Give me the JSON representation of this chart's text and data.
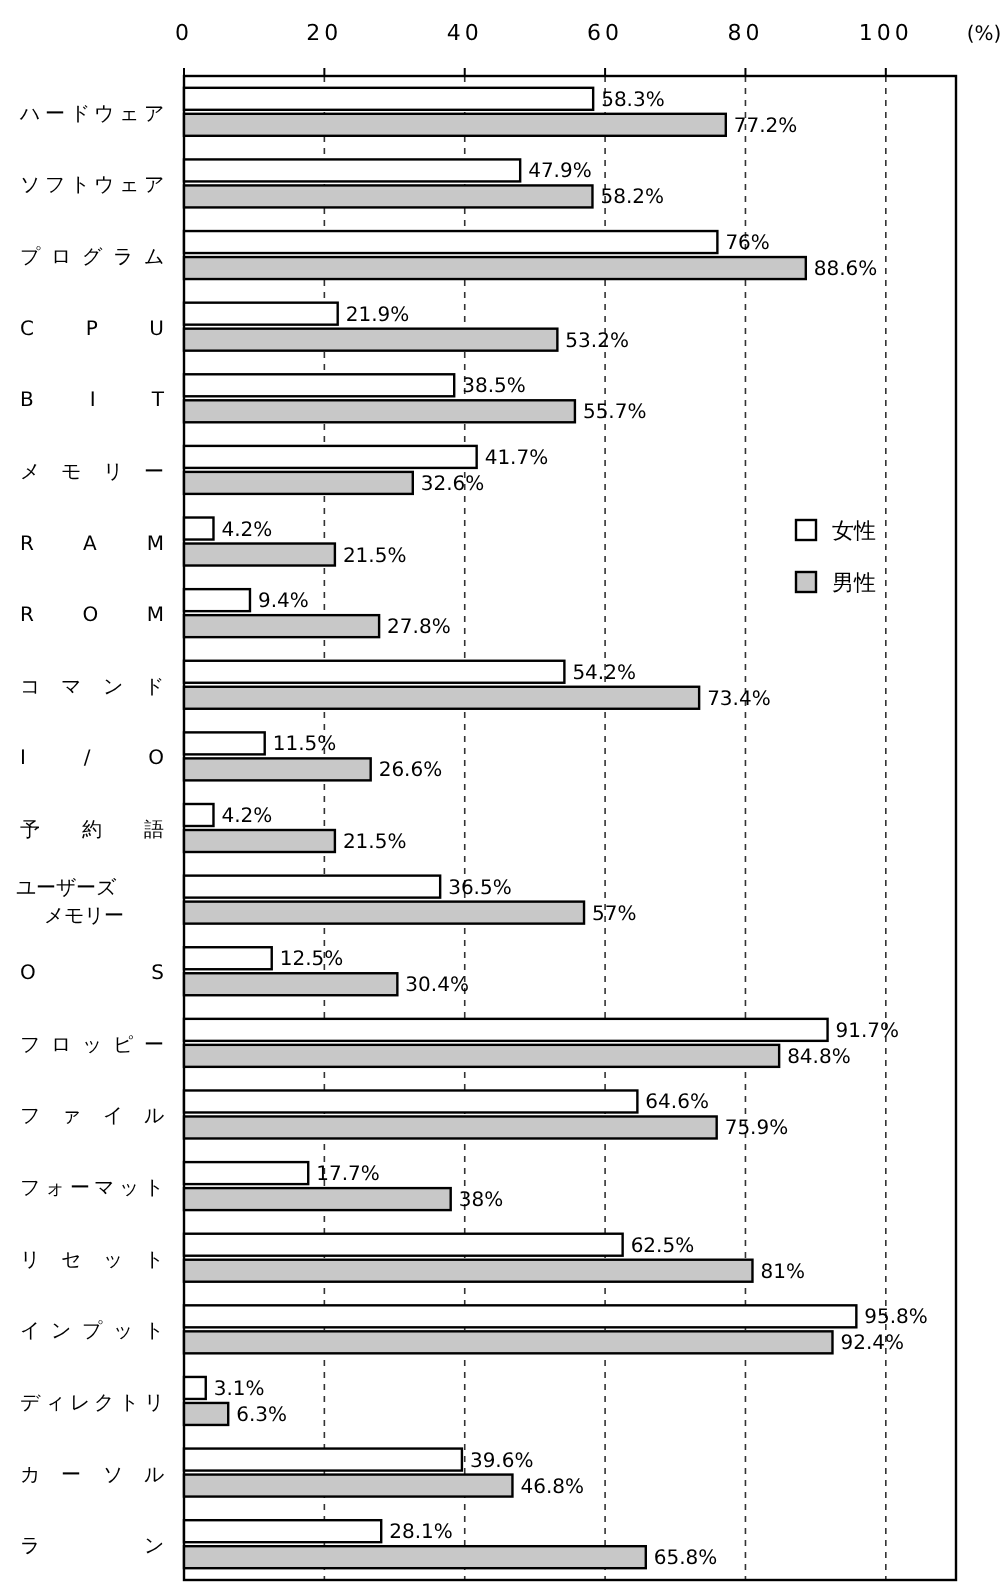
{
  "chart_data": {
    "type": "bar",
    "orientation": "horizontal",
    "xlabel": "(%)",
    "categories": [
      "ハードウェア",
      "ソフトウェア",
      "プログラム",
      "CPU",
      "BIT",
      "メモリー",
      "RAM",
      "ROM",
      "コマンド",
      "I/O",
      "予約語",
      "ユーザーズメモリー",
      "OS",
      "フロッピー",
      "ファイル",
      "フォーマット",
      "リセット",
      "インプット",
      "ディレクトリ",
      "カーソル",
      "ラン"
    ],
    "series": [
      {
        "name": "女性",
        "color": "#ffffff",
        "values": [
          58.3,
          47.9,
          76,
          21.9,
          38.5,
          41.7,
          4.2,
          9.4,
          54.2,
          11.5,
          4.2,
          36.5,
          12.5,
          91.7,
          64.6,
          17.7,
          62.5,
          95.8,
          3.1,
          39.6,
          28.1
        ],
        "value_labels": [
          "58.3%",
          "47.9%",
          "76%",
          "21.9%",
          "38.5%",
          "41.7%",
          "4.2%",
          "9.4%",
          "54.2%",
          "11.5%",
          "4.2%",
          "36.5%",
          "12.5%",
          "91.7%",
          "64.6%",
          "17.7%",
          "62.5%",
          "95.8%",
          "3.1%",
          "39.6%",
          "28.1%"
        ]
      },
      {
        "name": "男性",
        "color": "#c8c8c8",
        "values": [
          77.2,
          58.2,
          88.6,
          53.2,
          55.7,
          32.6,
          21.5,
          27.8,
          73.4,
          26.6,
          21.5,
          57,
          30.4,
          84.8,
          75.9,
          38,
          81,
          92.4,
          6.3,
          46.8,
          65.8
        ],
        "value_labels": [
          "77.2%",
          "58.2%",
          "88.6%",
          "53.2%",
          "55.7%",
          "32.6%",
          "21.5%",
          "27.8%",
          "73.4%",
          "26.6%",
          "21.5%",
          "57%",
          "30.4%",
          "84.8%",
          "75.9%",
          "38%",
          "81%",
          "92.4%",
          "6.3%",
          "46.8%",
          "65.8%"
        ]
      }
    ],
    "xlim": [
      0,
      110
    ],
    "xticks": [
      0,
      20,
      40,
      60,
      80,
      100
    ],
    "grid": "x",
    "legend": "right"
  }
}
